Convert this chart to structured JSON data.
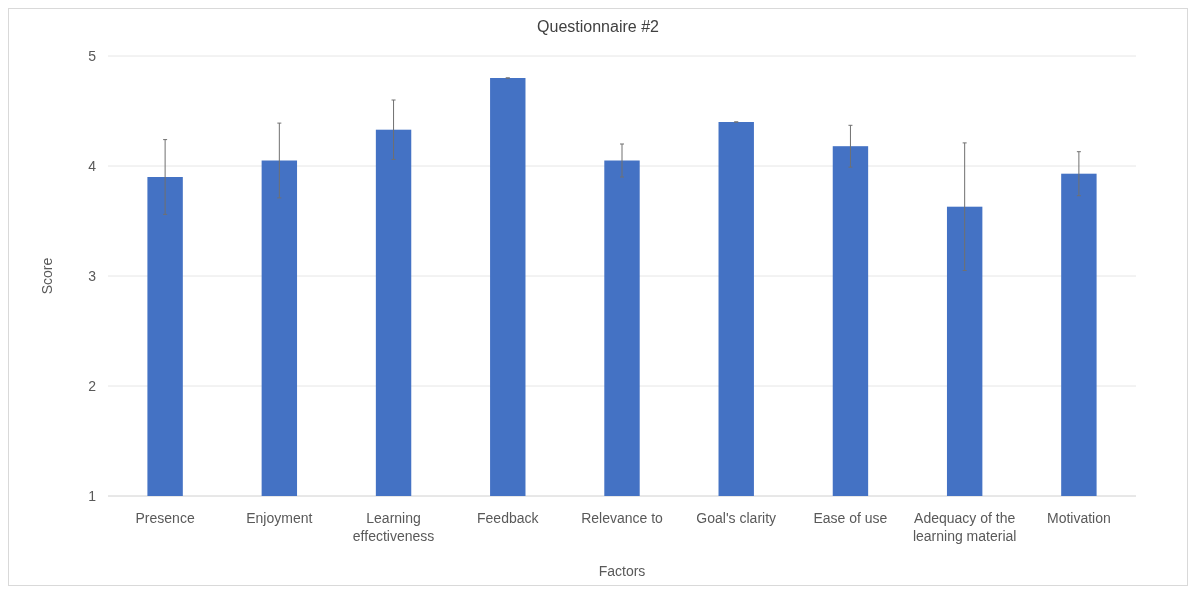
{
  "chart_data": {
    "type": "bar",
    "title": "Questionnaire #2",
    "xlabel": "Factors",
    "ylabel": "Score",
    "categories": [
      "Presence",
      "Enjoyment",
      "Learning effectiveness",
      "Feedback",
      "Relevance to",
      "Goal's clarity",
      "Ease of use",
      "Adequacy of the learning material",
      "Motivation"
    ],
    "values": [
      3.9,
      4.05,
      4.33,
      4.8,
      4.05,
      4.4,
      4.18,
      3.63,
      3.93
    ],
    "errors": [
      0.34,
      0.34,
      0.27,
      0,
      0.15,
      0,
      0.19,
      0.58,
      0.2
    ],
    "color": "#4472c4",
    "ylim": [
      1,
      5
    ],
    "yticks": [
      1,
      2,
      3,
      4,
      5
    ],
    "grid": "y"
  }
}
